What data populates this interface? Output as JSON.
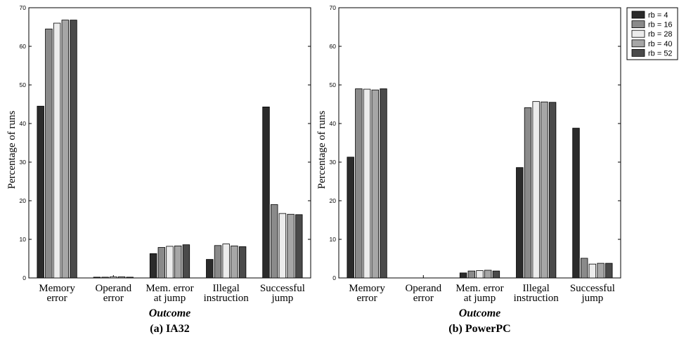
{
  "chart_data": [
    {
      "type": "bar",
      "caption": "(a) IA32",
      "xlabel": "Outcome",
      "ylabel": "Percentage of runs",
      "ylim": [
        0,
        70
      ],
      "yticks": [
        0,
        10,
        20,
        30,
        40,
        50,
        60,
        70
      ],
      "categories": [
        [
          "Memory",
          "error"
        ],
        [
          "Operand",
          "error"
        ],
        [
          "Mem. error",
          "at jump"
        ],
        [
          "Illegal",
          "instruction"
        ],
        [
          "Successful",
          "jump"
        ]
      ],
      "series": [
        {
          "name": "rb = 4",
          "values": [
            44.5,
            0.2,
            6.3,
            4.8,
            44.3
          ]
        },
        {
          "name": "rb = 16",
          "values": [
            64.5,
            0.2,
            7.9,
            8.4,
            19.0
          ]
        },
        {
          "name": "rb = 28",
          "values": [
            66.0,
            0.3,
            8.2,
            8.8,
            16.7
          ]
        },
        {
          "name": "rb = 40",
          "values": [
            66.8,
            0.3,
            8.3,
            8.3,
            16.5
          ]
        },
        {
          "name": "rb = 52",
          "values": [
            66.8,
            0.2,
            8.6,
            8.1,
            16.4
          ]
        }
      ]
    },
    {
      "type": "bar",
      "caption": "(b) PowerPC",
      "xlabel": "Outcome",
      "ylabel": "Percentage of runs",
      "ylim": [
        0,
        70
      ],
      "yticks": [
        0,
        10,
        20,
        30,
        40,
        50,
        60,
        70
      ],
      "categories": [
        [
          "Memory",
          "error"
        ],
        [
          "Operand",
          "error"
        ],
        [
          "Mem. error",
          "at jump"
        ],
        [
          "Illegal",
          "instruction"
        ],
        [
          "Successful",
          "jump"
        ]
      ],
      "series": [
        {
          "name": "rb = 4",
          "values": [
            31.3,
            0,
            1.3,
            28.6,
            38.8
          ]
        },
        {
          "name": "rb = 16",
          "values": [
            49.0,
            0,
            1.8,
            44.1,
            5.1
          ]
        },
        {
          "name": "rb = 28",
          "values": [
            48.9,
            0,
            1.9,
            45.7,
            3.6
          ]
        },
        {
          "name": "rb = 40",
          "values": [
            48.7,
            0,
            2.0,
            45.6,
            3.8
          ]
        },
        {
          "name": "rb = 52",
          "values": [
            49.0,
            0,
            1.8,
            45.5,
            3.8
          ]
        }
      ]
    }
  ],
  "legend": {
    "position": "top-right",
    "entries": [
      "rb = 4",
      "rb = 16",
      "rb = 28",
      "rb = 40",
      "rb = 52"
    ]
  },
  "colors": {
    "series": [
      "#2b2b2b",
      "#8a8a8a",
      "#ececec",
      "#a6a6a6",
      "#4a4a4a"
    ],
    "axis": "#000000"
  }
}
